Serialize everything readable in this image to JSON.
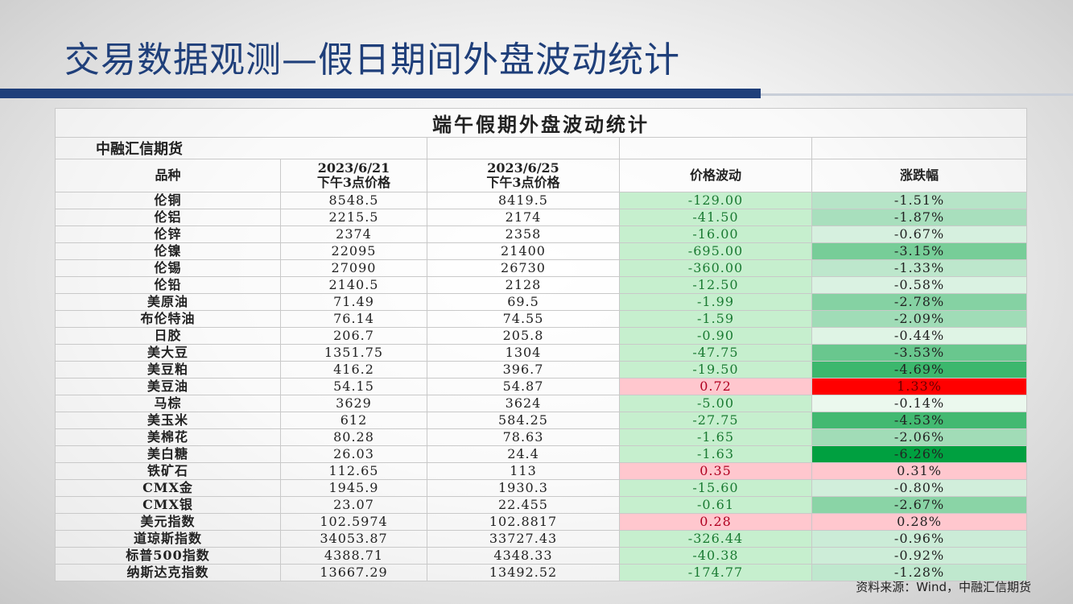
{
  "page": {
    "title": "交易数据观测—假日期间外盘波动统计",
    "footer_source": "资料来源：Wind，中融汇信期货"
  },
  "table": {
    "caption": "端午假期外盘波动统计",
    "source_label": "中融汇信期货",
    "headers": {
      "variety": "品种",
      "date1": "2023/6/21",
      "date1_sub": "下午3点价格",
      "date2": "2023/6/25",
      "date2_sub": "下午3点价格",
      "change": "价格波动",
      "pct": "涨跌幅"
    },
    "rows": [
      {
        "name": "伦铜",
        "p1": "8548.5",
        "p2": "8419.5",
        "change": "-129.00",
        "pct": "-1.51%",
        "pct_value": -1.51
      },
      {
        "name": "伦铝",
        "p1": "2215.5",
        "p2": "2174",
        "change": "-41.50",
        "pct": "-1.87%",
        "pct_value": -1.87
      },
      {
        "name": "伦锌",
        "p1": "2374",
        "p2": "2358",
        "change": "-16.00",
        "pct": "-0.67%",
        "pct_value": -0.67
      },
      {
        "name": "伦镍",
        "p1": "22095",
        "p2": "21400",
        "change": "-695.00",
        "pct": "-3.15%",
        "pct_value": -3.15
      },
      {
        "name": "伦锡",
        "p1": "27090",
        "p2": "26730",
        "change": "-360.00",
        "pct": "-1.33%",
        "pct_value": -1.33
      },
      {
        "name": "伦铅",
        "p1": "2140.5",
        "p2": "2128",
        "change": "-12.50",
        "pct": "-0.58%",
        "pct_value": -0.58
      },
      {
        "name": "美原油",
        "p1": "71.49",
        "p2": "69.5",
        "change": "-1.99",
        "pct": "-2.78%",
        "pct_value": -2.78
      },
      {
        "name": "布伦特油",
        "p1": "76.14",
        "p2": "74.55",
        "change": "-1.59",
        "pct": "-2.09%",
        "pct_value": -2.09
      },
      {
        "name": "日胶",
        "p1": "206.7",
        "p2": "205.8",
        "change": "-0.90",
        "pct": "-0.44%",
        "pct_value": -0.44
      },
      {
        "name": "美大豆",
        "p1": "1351.75",
        "p2": "1304",
        "change": "-47.75",
        "pct": "-3.53%",
        "pct_value": -3.53
      },
      {
        "name": "美豆粕",
        "p1": "416.2",
        "p2": "396.7",
        "change": "-19.50",
        "pct": "-4.69%",
        "pct_value": -4.69
      },
      {
        "name": "美豆油",
        "p1": "54.15",
        "p2": "54.87",
        "change": "0.72",
        "pct": "1.33%",
        "pct_value": 1.33
      },
      {
        "name": "马棕",
        "p1": "3629",
        "p2": "3624",
        "change": "-5.00",
        "pct": "-0.14%",
        "pct_value": -0.14
      },
      {
        "name": "美玉米",
        "p1": "612",
        "p2": "584.25",
        "change": "-27.75",
        "pct": "-4.53%",
        "pct_value": -4.53
      },
      {
        "name": "美棉花",
        "p1": "80.28",
        "p2": "78.63",
        "change": "-1.65",
        "pct": "-2.06%",
        "pct_value": -2.06
      },
      {
        "name": "美白糖",
        "p1": "26.03",
        "p2": "24.4",
        "change": "-1.63",
        "pct": "-6.26%",
        "pct_value": -6.26
      },
      {
        "name": "铁矿石",
        "p1": "112.65",
        "p2": "113",
        "change": "0.35",
        "pct": "0.31%",
        "pct_value": 0.31
      },
      {
        "name": "CMX金",
        "p1": "1945.9",
        "p2": "1930.3",
        "change": "-15.60",
        "pct": "-0.80%",
        "pct_value": -0.8
      },
      {
        "name": "CMX银",
        "p1": "23.07",
        "p2": "22.455",
        "change": "-0.61",
        "pct": "-2.67%",
        "pct_value": -2.67
      },
      {
        "name": "美元指数",
        "p1": "102.5974",
        "p2": "102.8817",
        "change": "0.28",
        "pct": "0.28%",
        "pct_value": 0.28
      },
      {
        "name": "道琼斯指数",
        "p1": "34053.87",
        "p2": "33727.43",
        "change": "-326.44",
        "pct": "-0.96%",
        "pct_value": -0.96
      },
      {
        "name": "标普500指数",
        "p1": "4388.71",
        "p2": "4348.33",
        "change": "-40.38",
        "pct": "-0.92%",
        "pct_value": -0.92
      },
      {
        "name": "纳斯达克指数",
        "p1": "13667.29",
        "p2": "13492.52",
        "change": "-174.77",
        "pct": "-1.28%",
        "pct_value": -1.28
      }
    ]
  },
  "colors": {
    "title_blue": "#1f3f7a",
    "change_down": "#c6efce",
    "change_up": "#ffc7ce",
    "change_down_text": "#1a7a32",
    "change_up_text": "#b00020",
    "up_strong": "#ff0000",
    "down_strong": "#00a040"
  }
}
